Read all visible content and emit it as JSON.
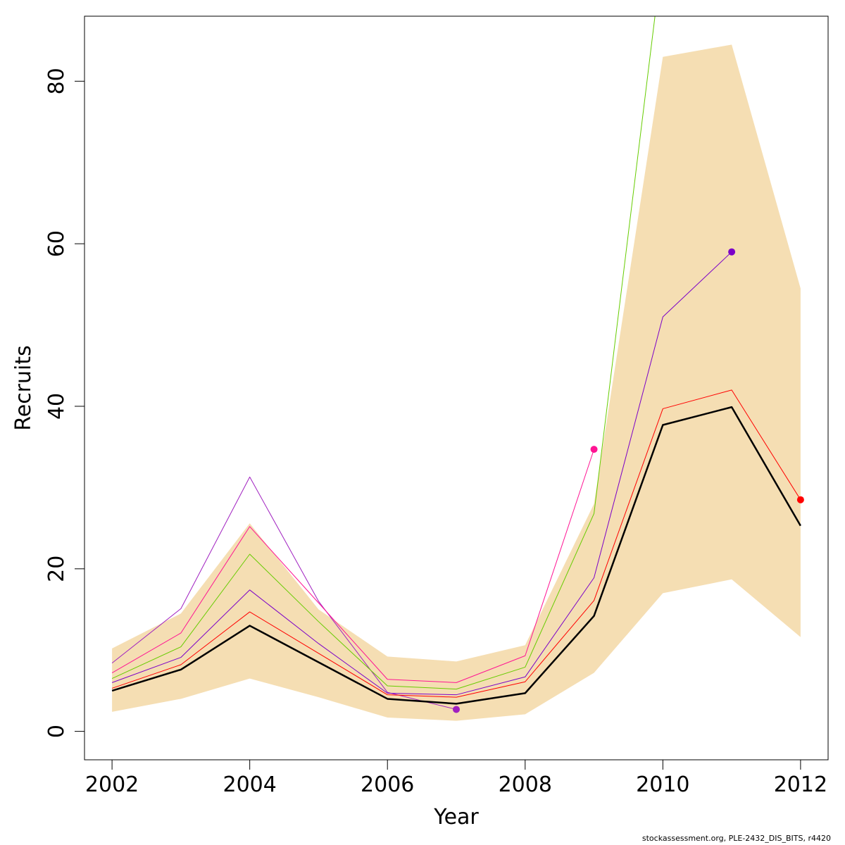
{
  "chart_data": {
    "type": "line",
    "xlabel": "Year",
    "ylabel": "Recruits",
    "xlim": [
      2001.6,
      2012.4
    ],
    "ylim": [
      -3.5,
      88
    ],
    "x_ticks": [
      2002,
      2004,
      2006,
      2008,
      2010,
      2012
    ],
    "y_ticks": [
      0,
      20,
      40,
      60,
      80
    ],
    "band": {
      "color": "#F5DEB3",
      "x": [
        2002,
        2003,
        2004,
        2005,
        2006,
        2007,
        2008,
        2009,
        2010,
        2011,
        2012
      ],
      "lower": [
        2.4,
        4.0,
        6.5,
        4.2,
        1.7,
        1.3,
        2.1,
        7.2,
        17.0,
        18.7,
        11.6
      ],
      "upper": [
        10.2,
        14.5,
        25.6,
        15.0,
        9.2,
        8.6,
        10.6,
        28.0,
        83.0,
        84.5,
        54.5
      ]
    },
    "series": [
      {
        "color": "#000000",
        "x": [
          2002,
          2003,
          2004,
          2005,
          2006,
          2007,
          2008,
          2009,
          2010,
          2011,
          2012
        ],
        "values": [
          5.0,
          7.6,
          13.0,
          8.5,
          4.0,
          3.4,
          4.7,
          14.2,
          37.7,
          39.9,
          25.3
        ],
        "end_point": false
      },
      {
        "color": "#FF0000",
        "x": [
          2002,
          2003,
          2004,
          2005,
          2006,
          2007,
          2008,
          2009,
          2010,
          2011,
          2012
        ],
        "values": [
          5.3,
          8.2,
          14.7,
          9.6,
          4.5,
          4.2,
          6.1,
          16.1,
          39.7,
          42.0,
          28.5
        ],
        "end_point": true
      },
      {
        "color": "#7B00C8",
        "x": [
          2002,
          2003,
          2004,
          2005,
          2006,
          2007,
          2008,
          2009,
          2010,
          2011
        ],
        "values": [
          6.0,
          9.1,
          17.4,
          10.8,
          4.7,
          4.5,
          6.7,
          18.9,
          51.0,
          59.0
        ],
        "end_point": true
      },
      {
        "color": "#66CC00",
        "x": [
          2002,
          2003,
          2004,
          2005,
          2006,
          2007,
          2008,
          2009,
          2009.9
        ],
        "values": [
          6.5,
          10.4,
          21.8,
          13.5,
          5.6,
          5.2,
          7.9,
          26.8,
          89.0
        ],
        "end_point": false
      },
      {
        "color": "#FF1493",
        "x": [
          2002,
          2003,
          2004,
          2005,
          2006,
          2007,
          2008,
          2009
        ],
        "values": [
          7.2,
          12.1,
          25.2,
          15.8,
          6.4,
          6.0,
          9.3,
          34.7
        ],
        "end_point": true
      },
      {
        "color": "#A020C0",
        "x": [
          2002,
          2003,
          2004,
          2005,
          2006,
          2007
        ],
        "values": [
          8.4,
          15.1,
          31.3,
          16.0,
          4.8,
          2.7
        ],
        "end_point": true
      }
    ]
  },
  "footer": "stockassessment.org, PLE-2432_DIS_BITS, r4420"
}
